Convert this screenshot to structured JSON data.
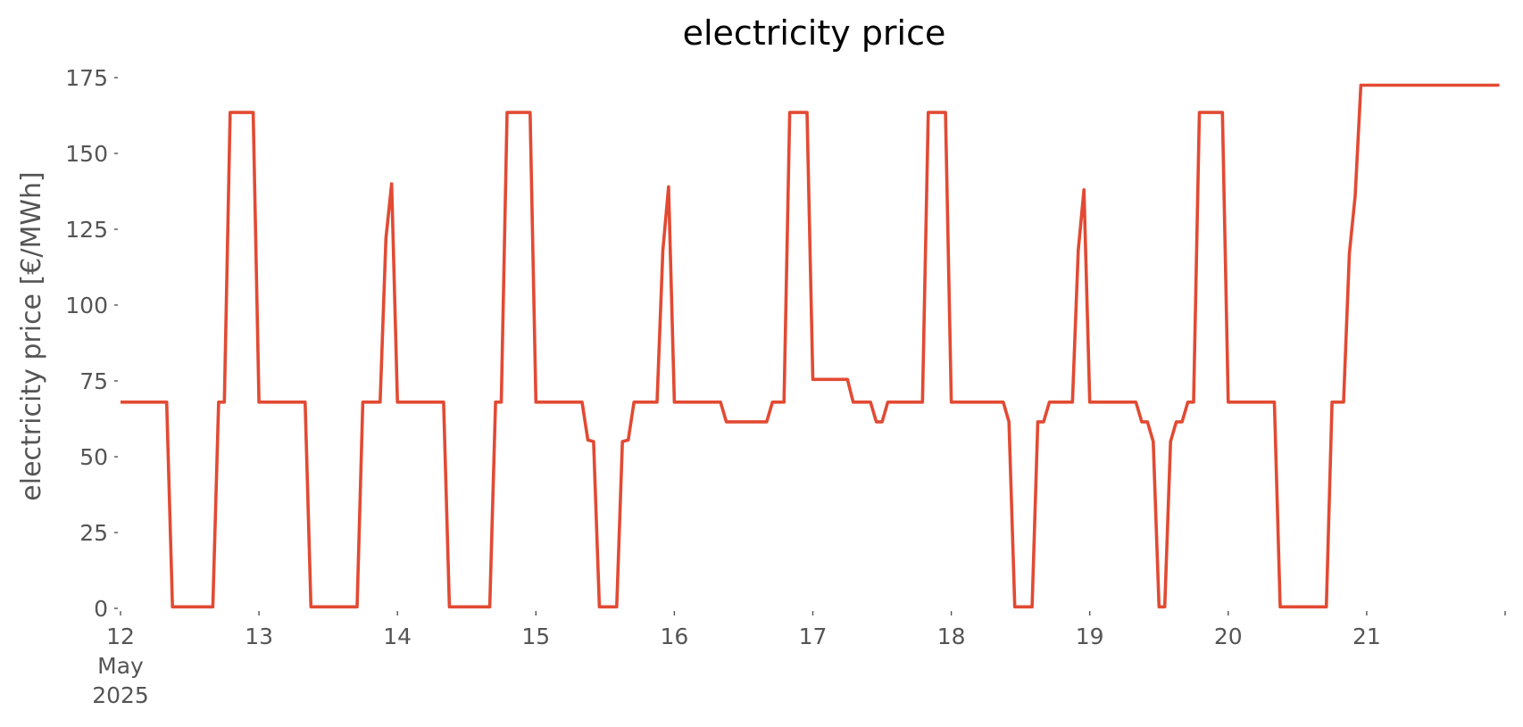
{
  "chart_data": {
    "type": "line",
    "title": "electricity price",
    "xlabel": "",
    "ylabel": "electricity price [€/MWh]",
    "xlim": [
      "2025-05-12 00:00",
      "2025-05-22 00:00"
    ],
    "ylim": [
      0,
      175
    ],
    "grid": false,
    "legend": "none",
    "x_ticks": [
      {
        "at": "2025-05-12 00:00",
        "lines": [
          "12",
          "May",
          "2025"
        ]
      },
      {
        "at": "2025-05-13 00:00",
        "lines": [
          "13"
        ]
      },
      {
        "at": "2025-05-14 00:00",
        "lines": [
          "14"
        ]
      },
      {
        "at": "2025-05-15 00:00",
        "lines": [
          "15"
        ]
      },
      {
        "at": "2025-05-16 00:00",
        "lines": [
          "16"
        ]
      },
      {
        "at": "2025-05-17 00:00",
        "lines": [
          "17"
        ]
      },
      {
        "at": "2025-05-18 00:00",
        "lines": [
          "18"
        ]
      },
      {
        "at": "2025-05-19 00:00",
        "lines": [
          "19"
        ]
      },
      {
        "at": "2025-05-20 00:00",
        "lines": [
          "20"
        ]
      },
      {
        "at": "2025-05-21 00:00",
        "lines": [
          "21"
        ]
      },
      {
        "at": "2025-05-22 00:00",
        "lines": [
          ""
        ]
      }
    ],
    "y_ticks": [
      0,
      25,
      50,
      75,
      100,
      125,
      150,
      175
    ],
    "series": [
      {
        "color": "#E24A33",
        "points": [
          [
            "2025-05-12 00:00",
            68
          ],
          [
            "2025-05-12 08:00",
            68
          ],
          [
            "2025-05-12 09:00",
            0.5
          ],
          [
            "2025-05-12 16:00",
            0.5
          ],
          [
            "2025-05-12 17:00",
            68
          ],
          [
            "2025-05-12 18:00",
            68
          ],
          [
            "2025-05-12 19:00",
            163.5
          ],
          [
            "2025-05-12 23:00",
            163.5
          ],
          [
            "2025-05-13 00:00",
            68
          ],
          [
            "2025-05-13 08:00",
            68
          ],
          [
            "2025-05-13 09:00",
            0.5
          ],
          [
            "2025-05-13 17:00",
            0.5
          ],
          [
            "2025-05-13 18:00",
            68
          ],
          [
            "2025-05-13 21:00",
            68
          ],
          [
            "2025-05-13 22:00",
            122
          ],
          [
            "2025-05-13 23:00",
            140
          ],
          [
            "2025-05-14 00:00",
            68
          ],
          [
            "2025-05-14 08:00",
            68
          ],
          [
            "2025-05-14 09:00",
            0.5
          ],
          [
            "2025-05-14 16:00",
            0.5
          ],
          [
            "2025-05-14 17:00",
            68
          ],
          [
            "2025-05-14 18:00",
            68
          ],
          [
            "2025-05-14 19:00",
            163.5
          ],
          [
            "2025-05-14 23:00",
            163.5
          ],
          [
            "2025-05-15 00:00",
            68
          ],
          [
            "2025-05-15 08:00",
            68
          ],
          [
            "2025-05-15 09:00",
            55.5
          ],
          [
            "2025-05-15 10:00",
            55
          ],
          [
            "2025-05-15 11:00",
            0.5
          ],
          [
            "2025-05-15 14:00",
            0.5
          ],
          [
            "2025-05-15 15:00",
            55
          ],
          [
            "2025-05-15 16:00",
            55.5
          ],
          [
            "2025-05-15 17:00",
            68
          ],
          [
            "2025-05-15 21:00",
            68
          ],
          [
            "2025-05-15 22:00",
            118
          ],
          [
            "2025-05-15 23:00",
            139
          ],
          [
            "2025-05-16 00:00",
            68
          ],
          [
            "2025-05-16 08:00",
            68
          ],
          [
            "2025-05-16 09:00",
            61.5
          ],
          [
            "2025-05-16 16:00",
            61.5
          ],
          [
            "2025-05-16 17:00",
            68
          ],
          [
            "2025-05-16 19:00",
            68
          ],
          [
            "2025-05-16 20:00",
            163.5
          ],
          [
            "2025-05-16 23:00",
            163.5
          ],
          [
            "2025-05-17 00:00",
            75.5
          ],
          [
            "2025-05-17 06:00",
            75.5
          ],
          [
            "2025-05-17 07:00",
            68
          ],
          [
            "2025-05-17 10:00",
            68
          ],
          [
            "2025-05-17 11:00",
            61.5
          ],
          [
            "2025-05-17 12:00",
            61.5
          ],
          [
            "2025-05-17 13:00",
            68
          ],
          [
            "2025-05-17 19:00",
            68
          ],
          [
            "2025-05-17 20:00",
            163.5
          ],
          [
            "2025-05-17 23:00",
            163.5
          ],
          [
            "2025-05-18 00:00",
            68
          ],
          [
            "2025-05-18 09:00",
            68
          ],
          [
            "2025-05-18 10:00",
            61.5
          ],
          [
            "2025-05-18 11:00",
            0.5
          ],
          [
            "2025-05-18 14:00",
            0.5
          ],
          [
            "2025-05-18 15:00",
            61.5
          ],
          [
            "2025-05-18 16:00",
            61.5
          ],
          [
            "2025-05-18 17:00",
            68
          ],
          [
            "2025-05-18 21:00",
            68
          ],
          [
            "2025-05-18 22:00",
            118
          ],
          [
            "2025-05-18 23:00",
            138
          ],
          [
            "2025-05-19 00:00",
            68
          ],
          [
            "2025-05-19 08:00",
            68
          ],
          [
            "2025-05-19 09:00",
            61.5
          ],
          [
            "2025-05-19 10:00",
            61.5
          ],
          [
            "2025-05-19 11:00",
            55
          ],
          [
            "2025-05-19 12:00",
            0.5
          ],
          [
            "2025-05-19 13:00",
            0.5
          ],
          [
            "2025-05-19 14:00",
            55
          ],
          [
            "2025-05-19 15:00",
            61.5
          ],
          [
            "2025-05-19 16:00",
            61.5
          ],
          [
            "2025-05-19 17:00",
            68
          ],
          [
            "2025-05-19 18:00",
            68
          ],
          [
            "2025-05-19 19:00",
            163.5
          ],
          [
            "2025-05-19 23:00",
            163.5
          ],
          [
            "2025-05-20 00:00",
            68
          ],
          [
            "2025-05-20 08:00",
            68
          ],
          [
            "2025-05-20 09:00",
            0.5
          ],
          [
            "2025-05-20 17:00",
            0.5
          ],
          [
            "2025-05-20 18:00",
            68
          ],
          [
            "2025-05-20 20:00",
            68
          ],
          [
            "2025-05-20 21:00",
            117
          ],
          [
            "2025-05-20 22:00",
            136
          ],
          [
            "2025-05-20 23:00",
            172.5
          ],
          [
            "2025-05-21 23:00",
            172.5
          ]
        ]
      }
    ]
  }
}
